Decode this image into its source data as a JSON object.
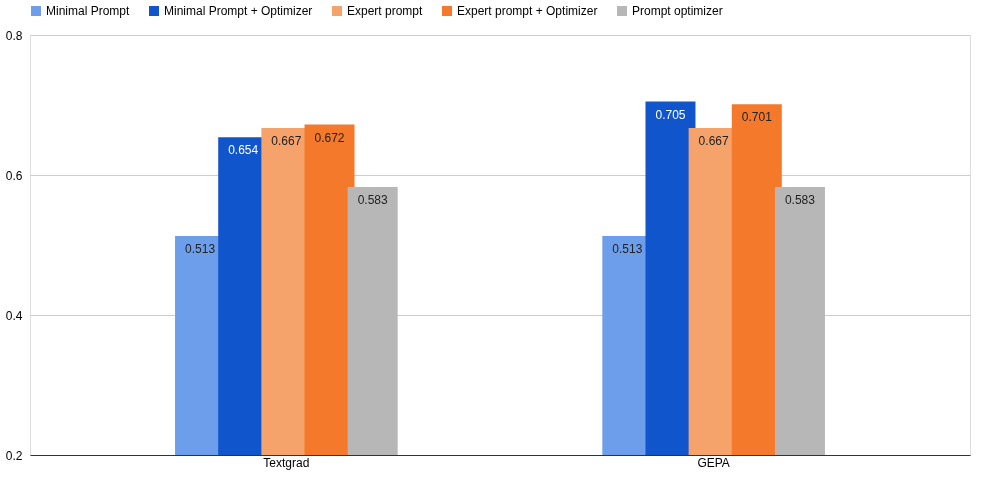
{
  "chart_data": {
    "type": "bar",
    "categories": [
      "Textgrad",
      "GEPA"
    ],
    "series": [
      {
        "name": "Minimal Prompt",
        "color": "#6d9eeb",
        "values": [
          0.513,
          0.513
        ]
      },
      {
        "name": "Minimal Prompt + Optimizer",
        "color": "#1155cc",
        "values": [
          0.654,
          0.705
        ]
      },
      {
        "name": "Expert prompt",
        "color": "#f6a26b",
        "values": [
          0.667,
          0.667
        ]
      },
      {
        "name": "Expert prompt + Optimizer",
        "color": "#f5792a",
        "values": [
          0.672,
          0.701
        ]
      },
      {
        "name": "Prompt optimizer",
        "color": "#b7b7b7",
        "values": [
          0.583,
          0.583
        ]
      }
    ],
    "ylim": [
      0.2,
      0.8
    ],
    "yticks": [
      0.2,
      0.4,
      0.6,
      0.8
    ],
    "grid": "y",
    "legend": "top",
    "data_labels": true
  }
}
